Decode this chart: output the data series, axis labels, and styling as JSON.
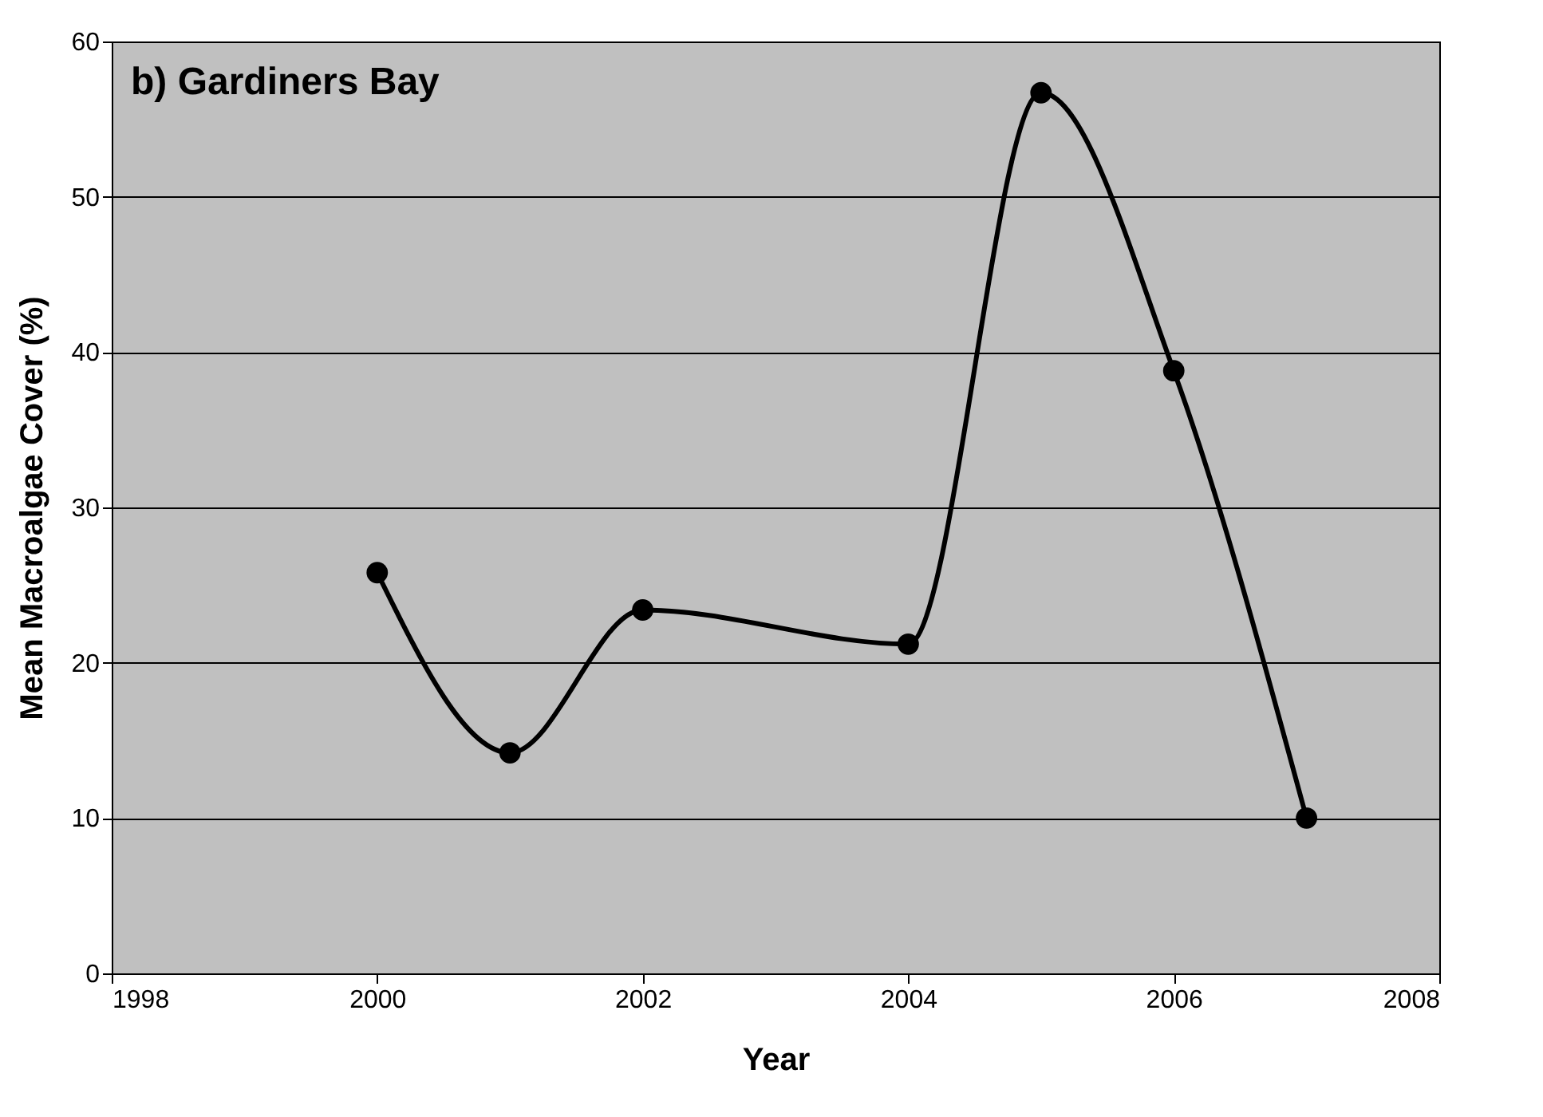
{
  "chart_data": {
    "type": "line",
    "title": "b) Gardiners Bay",
    "xlabel": "Year",
    "ylabel": "Mean Macroalgae Cover (%)",
    "x": [
      2000,
      2001,
      2002,
      2004,
      2005,
      2006,
      2007
    ],
    "series": [
      {
        "color": "#000000",
        "values": [
          25.8,
          14.2,
          23.4,
          21.2,
          56.7,
          38.8,
          10.0
        ]
      }
    ],
    "xlim": [
      1998,
      2008
    ],
    "xticks": [
      1998,
      2000,
      2002,
      2004,
      2006,
      2008
    ],
    "ylim": [
      0,
      60
    ],
    "yticks": [
      0,
      10,
      20,
      30,
      40,
      50,
      60
    ],
    "grid": "y",
    "marker": "circle",
    "line_style": "solid"
  }
}
